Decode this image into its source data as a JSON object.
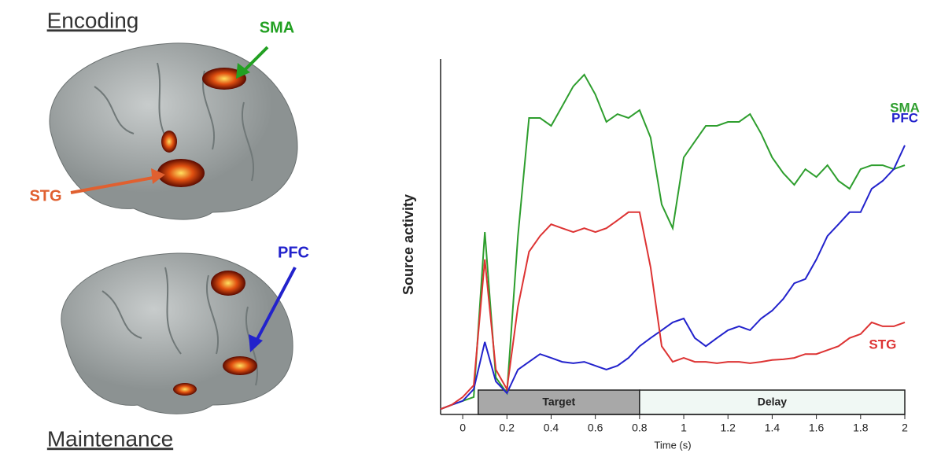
{
  "figure": {
    "panels": [
      {
        "title": "Encoding",
        "labels": [
          "SMA",
          "STG"
        ]
      },
      {
        "title": "Maintenance",
        "labels": [
          "PFC"
        ]
      }
    ]
  },
  "chart_data": {
    "type": "line",
    "y_label": "Source activity",
    "x_label": "Time (s)",
    "x": [
      -0.1,
      -0.05,
      0,
      0.05,
      0.1,
      0.15,
      0.2,
      0.25,
      0.3,
      0.35,
      0.4,
      0.45,
      0.5,
      0.55,
      0.6,
      0.65,
      0.7,
      0.75,
      0.8,
      0.85,
      0.9,
      0.95,
      1,
      1.05,
      1.1,
      1.15,
      1.2,
      1.25,
      1.3,
      1.35,
      1.4,
      1.45,
      1.5,
      1.55,
      1.6,
      1.65,
      1.7,
      1.75,
      1.8,
      1.85,
      1.9,
      1.95,
      2
    ],
    "series": [
      {
        "name": "SMA",
        "color": "#2e9e2e",
        "values": [
          1.5,
          2.7,
          3.8,
          4.9,
          51.3,
          10.4,
          6.0,
          50.2,
          83.4,
          83.4,
          81.2,
          86.7,
          92.3,
          95.6,
          90.0,
          82.3,
          84.5,
          83.4,
          85.6,
          77.9,
          59.1,
          52.4,
          72.3,
          76.8,
          81.2,
          81.2,
          82.3,
          82.3,
          84.5,
          79.0,
          72.3,
          67.9,
          64.6,
          69.0,
          66.8,
          70.1,
          65.7,
          63.5,
          69.0,
          70.1,
          70.1,
          69.0,
          70.1
        ]
      },
      {
        "name": "PFC",
        "color": "#2222cc",
        "values": [
          1.5,
          2.7,
          3.8,
          7.1,
          20.4,
          9.3,
          6.0,
          12.6,
          14.8,
          17.0,
          15.9,
          14.8,
          14.4,
          14.8,
          13.7,
          12.6,
          13.7,
          15.9,
          19.2,
          21.5,
          23.7,
          25.9,
          27.0,
          21.5,
          19.2,
          21.5,
          23.7,
          24.8,
          23.7,
          27.0,
          29.2,
          32.5,
          36.9,
          38.1,
          43.6,
          50.2,
          53.5,
          56.9,
          56.9,
          63.5,
          65.7,
          69.0,
          75.7
        ]
      },
      {
        "name": "STG",
        "color": "#dd3333",
        "values": [
          1.5,
          2.7,
          4.9,
          8.2,
          43.6,
          12.6,
          7.1,
          30.3,
          45.8,
          50.2,
          53.5,
          52.4,
          51.3,
          52.4,
          51.3,
          52.4,
          54.6,
          56.9,
          56.9,
          41.4,
          19.2,
          14.8,
          15.9,
          14.8,
          14.8,
          14.4,
          14.8,
          14.8,
          14.4,
          14.8,
          15.3,
          15.5,
          15.9,
          17.0,
          17.0,
          18.1,
          19.2,
          21.5,
          22.6,
          25.9,
          24.8,
          24.8,
          25.9
        ]
      }
    ],
    "periods": [
      {
        "label": "Target",
        "start": 0.07,
        "end": 0.8,
        "color": "#a8a8a8"
      },
      {
        "label": "Delay",
        "start": 0.8,
        "end": 2,
        "color": "#f0f8f4"
      }
    ],
    "xlim": [
      -0.1,
      2
    ],
    "ylim": [
      0,
      100
    ],
    "xticks": [
      0,
      0.2,
      0.4,
      0.6,
      0.8,
      1,
      1.2,
      1.4,
      1.6,
      1.8,
      2
    ]
  }
}
